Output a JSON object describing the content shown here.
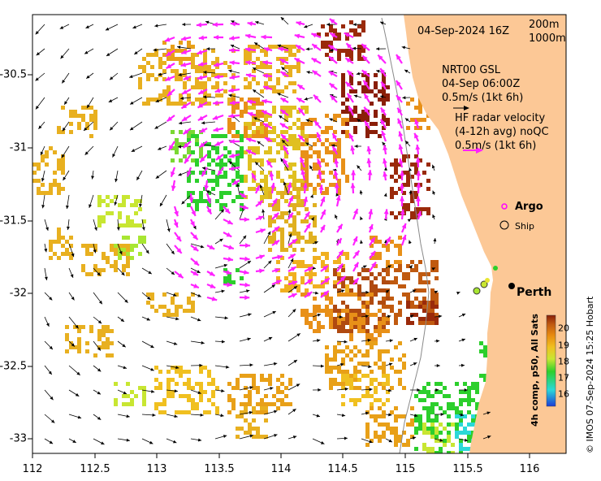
{
  "map": {
    "lon_range": [
      112,
      116.3
    ],
    "lat_range": [
      -33.1,
      -30.1
    ],
    "x_ticks": [
      "112",
      "112.5",
      "113",
      "113.5",
      "114",
      "114.5",
      "115",
      "115.5",
      "116"
    ],
    "y_ticks": [
      "-30.5",
      "-31",
      "-31.5",
      "-32",
      "-32.5",
      "-33"
    ],
    "land_color": "#fcc896",
    "contour_200m_color": "#8a8a8a",
    "contour_1000m_color": "#c9c9c9"
  },
  "header": {
    "datetime": "04-Sep-2024 16Z",
    "contour_200": "200m",
    "contour_1000": "1000m"
  },
  "legend": {
    "gsl_title": "NRT00 GSL",
    "gsl_time": "04-Sep 06:00Z",
    "gsl_scale": "0.5m/s (1kt 6h)",
    "hf_title": "HF radar velocity",
    "hf_avg": "(4-12h avg) noQC",
    "hf_scale": "0.5m/s (1kt 6h)",
    "argo_label": "Argo",
    "ship_label": "Ship",
    "argo_color": "#ff00ff",
    "hf_arrow_color": "#ff22ff"
  },
  "places": {
    "perth": "Perth"
  },
  "colorbar": {
    "title": "4h comp, p50, All Sats",
    "ticks": [
      "20",
      "19",
      "18",
      "17",
      "16"
    ],
    "stops": [
      "#2b7bd8",
      "#2bd8d8",
      "#2ccf2c",
      "#c8e632",
      "#f0c020",
      "#e88a10",
      "#c05a10",
      "#8a1f08"
    ]
  },
  "credit": "© IMOS 07-Sep-2024 15:25 Hobart"
}
